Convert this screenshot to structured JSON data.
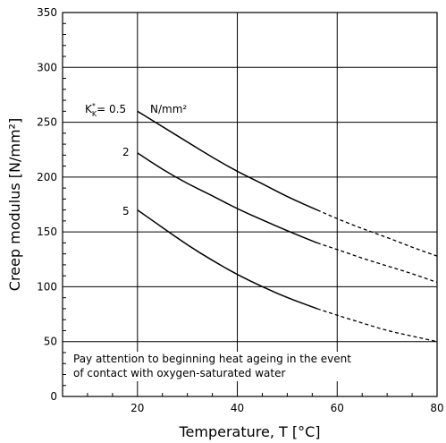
{
  "chart_data": {
    "type": "line",
    "xlabel": "Temperature, T  [°C]",
    "ylabel": "Creep modulus [N/mm²]",
    "xlim": [
      5,
      80
    ],
    "ylim": [
      0,
      350
    ],
    "x_ticks": [
      20,
      40,
      60,
      80
    ],
    "y_ticks": [
      0,
      50,
      100,
      150,
      200,
      250,
      300,
      350
    ],
    "grid": true,
    "unit_label": "N/mm²",
    "annotation": [
      "Pay attention to beginning heat ageing in the event",
      "of contact with oxygen-saturated water"
    ],
    "series": [
      {
        "name": "K*K= 0.5",
        "label_main": "K",
        "label_sup": "*",
        "label_sub": "K",
        "label_rest": "= 0.5",
        "solid": {
          "x": [
            20,
            25,
            30,
            35,
            40,
            45,
            50,
            56
          ],
          "y": [
            260,
            246,
            232,
            218,
            205,
            194,
            182,
            170
          ]
        },
        "dashed": {
          "x": [
            56,
            60,
            65,
            70,
            75,
            80
          ],
          "y": [
            170,
            162,
            153,
            145,
            136,
            128
          ]
        }
      },
      {
        "name": "2",
        "label_main": "2",
        "solid": {
          "x": [
            20,
            25,
            30,
            35,
            40,
            45,
            50,
            56
          ],
          "y": [
            222,
            207,
            194,
            183,
            171,
            161,
            151,
            140
          ]
        },
        "dashed": {
          "x": [
            56,
            60,
            65,
            70,
            75,
            80
          ],
          "y": [
            140,
            134,
            126,
            119,
            112,
            104
          ]
        }
      },
      {
        "name": "5",
        "label_main": "5",
        "solid": {
          "x": [
            20,
            25,
            30,
            35,
            40,
            45,
            50,
            56
          ],
          "y": [
            170,
            154,
            138,
            124,
            111,
            100,
            90,
            80
          ]
        },
        "dashed": {
          "x": [
            56,
            60,
            65,
            70,
            75,
            80
          ],
          "y": [
            80,
            74,
            67,
            60,
            55,
            50
          ]
        }
      }
    ]
  },
  "colors": {
    "line": "#000000",
    "grid": "#000000",
    "background": "#ffffff"
  }
}
